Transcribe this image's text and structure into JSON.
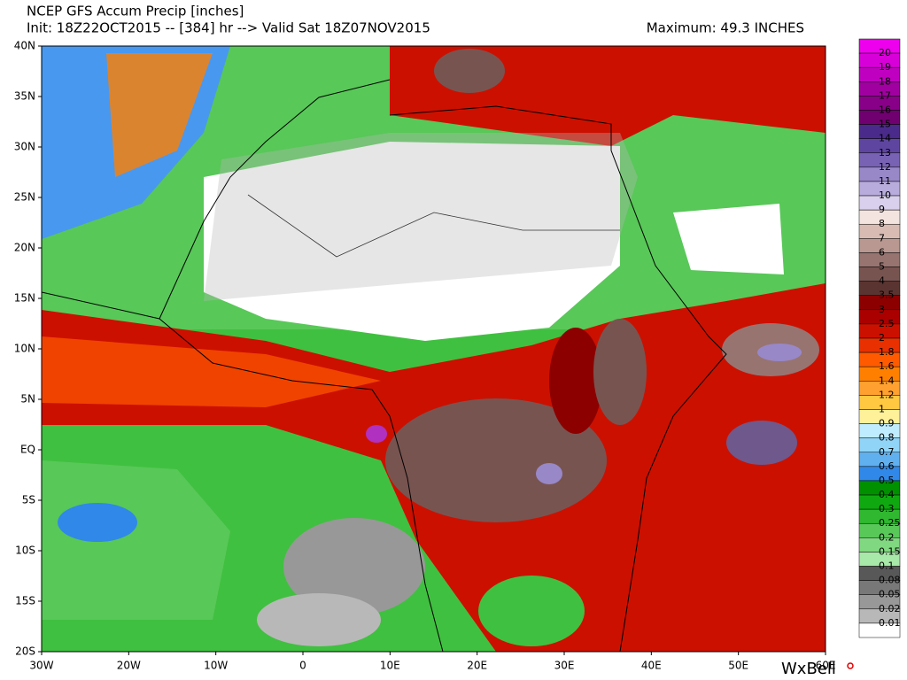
{
  "header": {
    "title": "NCEP GFS Accum Precip [inches]",
    "subtitle": "Init: 18Z22OCT2015 -- [384] hr --> Valid Sat 18Z07NOV2015",
    "maximum": "Maximum: 49.3 INCHES"
  },
  "map": {
    "lat_labels": [
      "40N",
      "35N",
      "30N",
      "25N",
      "20N",
      "15N",
      "10N",
      "5N",
      "EQ",
      "5S",
      "10S",
      "15S",
      "20S"
    ],
    "lon_labels": [
      "30W",
      "20W",
      "10W",
      "0",
      "10E",
      "20E",
      "30E",
      "40E",
      "50E",
      "60E"
    ]
  },
  "colorbar": {
    "top_color": "#ee00ee",
    "entries": [
      {
        "label": "20",
        "color": "#d800d8"
      },
      {
        "label": "19",
        "color": "#c000c0"
      },
      {
        "label": "18",
        "color": "#a000a0"
      },
      {
        "label": "17",
        "color": "#880088"
      },
      {
        "label": "16",
        "color": "#700070"
      },
      {
        "label": "15",
        "color": "#4a2a8a"
      },
      {
        "label": "14",
        "color": "#5e46a0"
      },
      {
        "label": "13",
        "color": "#7862b4"
      },
      {
        "label": "12",
        "color": "#9888c8"
      },
      {
        "label": "11",
        "color": "#b8acdc"
      },
      {
        "label": "10",
        "color": "#d8d0ec"
      },
      {
        "label": "9",
        "color": "#f4e4e0"
      },
      {
        "label": "8",
        "color": "#d8bcb4"
      },
      {
        "label": "7",
        "color": "#b89890"
      },
      {
        "label": "6",
        "color": "#987470"
      },
      {
        "label": "5",
        "color": "#785450"
      },
      {
        "label": "4",
        "color": "#5a3430"
      },
      {
        "label": "3.5",
        "color": "#8c0000"
      },
      {
        "label": "3",
        "color": "#aa0000"
      },
      {
        "label": "2.5",
        "color": "#cc1000"
      },
      {
        "label": "2",
        "color": "#e83000"
      },
      {
        "label": "1.8",
        "color": "#ff5a00"
      },
      {
        "label": "1.6",
        "color": "#ff8000"
      },
      {
        "label": "1.4",
        "color": "#ffa030"
      },
      {
        "label": "1.2",
        "color": "#ffc840"
      },
      {
        "label": "1",
        "color": "#fff09a"
      },
      {
        "label": "0.9",
        "color": "#c0ecff"
      },
      {
        "label": "0.8",
        "color": "#90d4f8"
      },
      {
        "label": "0.7",
        "color": "#60b0f0"
      },
      {
        "label": "0.6",
        "color": "#3088e8"
      },
      {
        "label": "0.5",
        "color": "#009000"
      },
      {
        "label": "0.4",
        "color": "#10a810"
      },
      {
        "label": "0.3",
        "color": "#30b830"
      },
      {
        "label": "0.25",
        "color": "#58c858"
      },
      {
        "label": "0.2",
        "color": "#80d880"
      },
      {
        "label": "0.15",
        "color": "#a8e8a8"
      },
      {
        "label": "0.1",
        "color": "#585858"
      },
      {
        "label": "0.08",
        "color": "#787878"
      },
      {
        "label": "0.05",
        "color": "#989898"
      },
      {
        "label": "0.02",
        "color": "#b8b8b8"
      },
      {
        "label": "0.01",
        "color": "#ffffff"
      }
    ]
  },
  "logo": "WxBell"
}
